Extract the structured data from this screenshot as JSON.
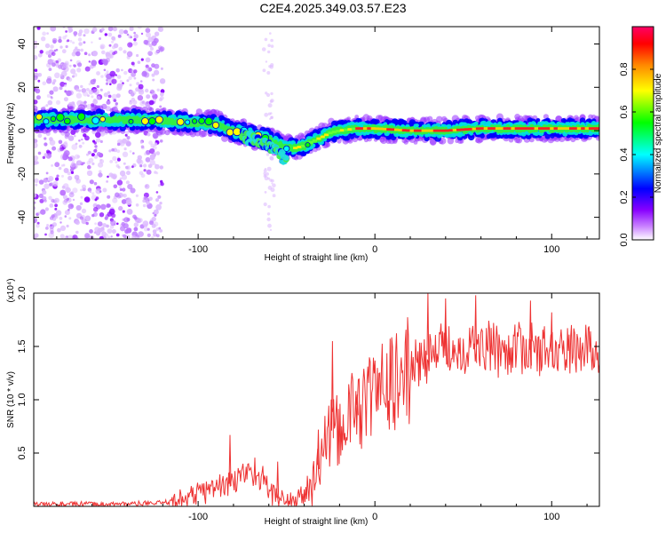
{
  "title": "C2E4.2025.349.03.57.E23",
  "chart_data": [
    {
      "type": "heatmap",
      "name": "spectrogram",
      "xlabel": "Height of straight line (km)",
      "ylabel": "Frequency (Hz)",
      "xlim": [
        -193,
        127
      ],
      "ylim": [
        -50,
        48
      ],
      "x_ticks": [
        -100,
        0,
        100
      ],
      "x_tick_labels": [
        "-100",
        "0",
        "100"
      ],
      "y_ticks": [
        -40,
        -20,
        0,
        20,
        40
      ],
      "y_tick_labels": [
        "-40",
        "-20",
        "0",
        "20",
        "40"
      ],
      "colorbar": {
        "label": "Normalized spectral amplitude",
        "range": [
          0,
          1
        ],
        "ticks": [
          0.0,
          0.2,
          0.4,
          0.6,
          0.8
        ],
        "tick_labels": [
          "0.0",
          "0.2",
          "0.4",
          "0.6",
          "0.8"
        ],
        "colormap": [
          "#ffffff",
          "#cc88ff",
          "#8800ff",
          "#0000ff",
          "#00ffff",
          "#00ff00",
          "#ffff00",
          "#ff8800",
          "#ff0000",
          "#ff0066"
        ]
      },
      "ridge": {
        "description": "Frequency of strongest return vs height",
        "x": [
          -193,
          -170,
          -150,
          -130,
          -110,
          -90,
          -80,
          -70,
          -60,
          -55,
          -50,
          -45,
          -40,
          -35,
          -30,
          -25,
          -20,
          -10,
          0,
          20,
          40,
          60,
          80,
          100,
          127
        ],
        "y": [
          5,
          5,
          5,
          5,
          4,
          3,
          0,
          -2,
          -4,
          -6,
          -8,
          -8,
          -7,
          -5,
          -3,
          -1,
          0,
          1,
          1,
          0,
          0,
          1,
          1,
          1,
          1
        ]
      },
      "secondary_branch": {
        "x": [
          -75,
          -70,
          -65,
          -60,
          -55,
          -50
        ],
        "y": [
          -2,
          -4,
          -5,
          -7,
          -10,
          -14
        ]
      },
      "noise_region_x": [
        -193,
        -120
      ]
    },
    {
      "type": "line",
      "name": "snr",
      "xlabel": "Height of straight line (km)",
      "ylabel": "SNR (10 * v/v)",
      "y_scale_label": "(x10⁴)",
      "xlim": [
        -193,
        127
      ],
      "ylim": [
        0,
        2.0
      ],
      "x_ticks": [
        -100,
        0,
        100
      ],
      "x_tick_labels": [
        "-100",
        "0",
        "100"
      ],
      "y_ticks": [
        0.5,
        1.0,
        1.5,
        2.0
      ],
      "y_tick_labels": [
        "0.5",
        "1.0",
        "1.5",
        "2.0"
      ],
      "color": "#ee3333",
      "envelope_x": [
        -193,
        -150,
        -120,
        -110,
        -100,
        -90,
        -80,
        -75,
        -70,
        -65,
        -60,
        -55,
        -50,
        -45,
        -40,
        -35,
        -30,
        -25,
        -20,
        -15,
        -10,
        -5,
        0,
        10,
        20,
        30,
        40,
        50,
        60,
        70,
        80,
        90,
        100,
        110,
        120,
        127
      ],
      "envelope_y": [
        0.02,
        0.02,
        0.03,
        0.06,
        0.12,
        0.18,
        0.22,
        0.3,
        0.35,
        0.28,
        0.16,
        0.08,
        0.06,
        0.06,
        0.1,
        0.22,
        0.5,
        0.7,
        0.75,
        0.85,
        0.95,
        1.0,
        1.08,
        1.12,
        1.28,
        1.42,
        1.48,
        1.48,
        1.5,
        1.46,
        1.5,
        1.46,
        1.45,
        1.48,
        1.48,
        1.44
      ],
      "spikes": [
        {
          "x": -82,
          "y": 0.67
        },
        {
          "x": -55,
          "y": 0.42
        },
        {
          "x": -32,
          "y": 0.72
        },
        {
          "x": -24,
          "y": 1.55
        },
        {
          "x": -10,
          "y": 1.05
        },
        {
          "x": 30,
          "y": 2.0
        },
        {
          "x": 40,
          "y": 1.95
        },
        {
          "x": 57,
          "y": 1.98
        },
        {
          "x": 88,
          "y": 1.93
        },
        {
          "x": 100,
          "y": 1.82
        }
      ]
    }
  ]
}
